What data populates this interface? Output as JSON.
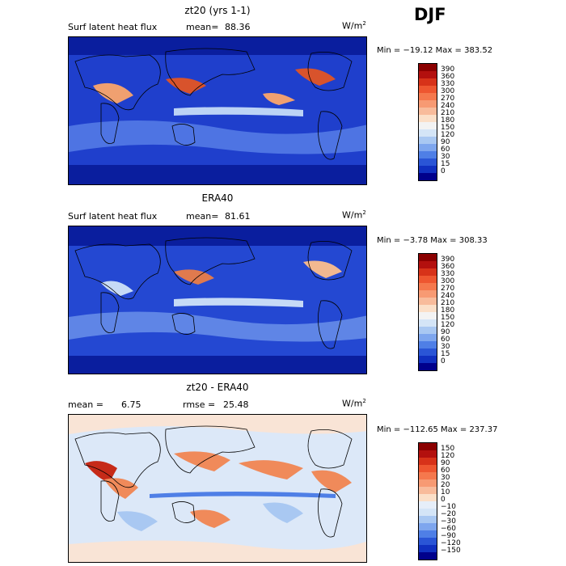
{
  "season": "DJF",
  "panels": [
    {
      "title": "zt20 (yrs 1-1)",
      "left_label": "Surf latent heat flux",
      "stat_label": "mean=",
      "stat_value": "88.36",
      "unit": "W/m",
      "unit_exp": "2",
      "minmax": "Min = −19.12  Max = 383.52",
      "colorbar": {
        "labels": [
          "390",
          "360",
          "330",
          "300",
          "270",
          "240",
          "210",
          "180",
          "150",
          "120",
          "90",
          "60",
          "30",
          "15",
          "0"
        ],
        "colors": [
          "#8b0000",
          "#b3100e",
          "#d73219",
          "#ee5630",
          "#f5784d",
          "#f79a73",
          "#f8bb9b",
          "#fbdfc8",
          "#f3f3f3",
          "#d4e5f7",
          "#a9c8f2",
          "#7ea6ee",
          "#4f7fe6",
          "#2a55d6",
          "#1030c0",
          "#00008b"
        ]
      },
      "map_palette": {
        "ocean": "#1f3fcc",
        "deep": "#0a1e9e",
        "mid": "#5a82e8",
        "pale": "#bcd3f5",
        "warm": "#f0a070",
        "hot": "#d8532c",
        "land": "#3b5fd8"
      }
    },
    {
      "title": "ERA40",
      "left_label": "Surf latent heat flux",
      "stat_label": "mean=",
      "stat_value": "81.61",
      "unit": "W/m",
      "unit_exp": "2",
      "minmax": "Min =   −3.78  Max = 308.33",
      "colorbar": {
        "labels": [
          "390",
          "360",
          "330",
          "300",
          "270",
          "240",
          "210",
          "180",
          "150",
          "120",
          "90",
          "60",
          "30",
          "15",
          "0"
        ],
        "colors": [
          "#8b0000",
          "#b3100e",
          "#d73219",
          "#ee5630",
          "#f5784d",
          "#f79a73",
          "#f8bb9b",
          "#fbdfc8",
          "#f3f3f3",
          "#d4e5f7",
          "#a9c8f2",
          "#7ea6ee",
          "#4f7fe6",
          "#2a55d6",
          "#1030c0",
          "#00008b"
        ]
      },
      "map_palette": {
        "ocean": "#2448d2",
        "deep": "#0a1e9e",
        "mid": "#6a90ea",
        "pale": "#c6daf6",
        "warm": "#f2b890",
        "hot": "#e07a4e",
        "land": "#3b5fd8"
      }
    },
    {
      "title": "zt20 - ERA40",
      "left_label": "mean =",
      "stat_label": "6.75",
      "stat2_label": "rmse =",
      "stat_value": "25.48",
      "unit": "W/m",
      "unit_exp": "2",
      "minmax": "Min = −112.65  Max = 237.37",
      "colorbar": {
        "labels": [
          "150",
          "120",
          "90",
          "60",
          "30",
          "20",
          "10",
          "0",
          "−10",
          "−20",
          "−30",
          "−60",
          "−90",
          "−120",
          "−150"
        ],
        "colors": [
          "#8b0000",
          "#b3100e",
          "#d73219",
          "#ee5630",
          "#f5784d",
          "#f79a73",
          "#f8bb9b",
          "#fbdfc8",
          "#e6eef9",
          "#d4e5f7",
          "#a9c8f2",
          "#7ea6ee",
          "#4f7fe6",
          "#2a55d6",
          "#1030c0",
          "#00008b"
        ]
      },
      "map_palette": {
        "ocean": "#dce8f8",
        "deep": "#4f7fe6",
        "mid": "#a9c8f2",
        "pale": "#f9e4d6",
        "warm": "#f08a5a",
        "hot": "#c62a18",
        "land": "#e6eef9"
      }
    }
  ]
}
